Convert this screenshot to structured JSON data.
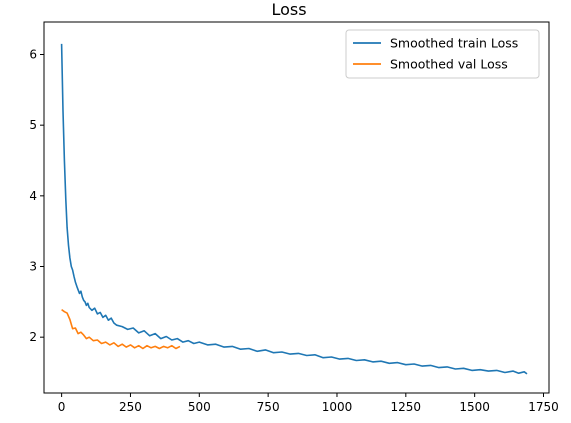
{
  "chart_data": {
    "type": "line",
    "title": "Loss",
    "xlabel": "",
    "ylabel": "",
    "xlim": [
      -64,
      1770
    ],
    "ylim": [
      1.21,
      6.46
    ],
    "xticks": [
      0,
      250,
      500,
      750,
      1000,
      1250,
      1500,
      1750
    ],
    "yticks": [
      2,
      3,
      4,
      5,
      6
    ],
    "grid": false,
    "legend_position": "top-right",
    "series": [
      {
        "name": "Smoothed train Loss",
        "color": "#1f77b4",
        "x": [
          0,
          5,
          10,
          15,
          20,
          25,
          30,
          35,
          40,
          45,
          50,
          55,
          60,
          65,
          70,
          75,
          80,
          85,
          90,
          95,
          100,
          110,
          120,
          130,
          140,
          150,
          160,
          170,
          180,
          190,
          200,
          220,
          240,
          260,
          280,
          300,
          320,
          340,
          360,
          380,
          400,
          420,
          440,
          460,
          480,
          500,
          530,
          560,
          590,
          620,
          650,
          680,
          710,
          740,
          770,
          800,
          830,
          860,
          890,
          920,
          950,
          980,
          1010,
          1040,
          1070,
          1100,
          1130,
          1160,
          1190,
          1220,
          1250,
          1280,
          1310,
          1340,
          1370,
          1400,
          1430,
          1460,
          1490,
          1520,
          1550,
          1580,
          1610,
          1640,
          1660,
          1680,
          1690
        ],
        "y": [
          6.15,
          5.2,
          4.5,
          3.95,
          3.55,
          3.3,
          3.12,
          3.0,
          2.95,
          2.86,
          2.78,
          2.72,
          2.67,
          2.62,
          2.65,
          2.57,
          2.52,
          2.5,
          2.45,
          2.48,
          2.42,
          2.38,
          2.41,
          2.33,
          2.35,
          2.28,
          2.31,
          2.24,
          2.27,
          2.2,
          2.17,
          2.15,
          2.11,
          2.13,
          2.06,
          2.09,
          2.02,
          2.05,
          1.98,
          2.01,
          1.96,
          1.98,
          1.93,
          1.95,
          1.91,
          1.93,
          1.89,
          1.9,
          1.86,
          1.87,
          1.83,
          1.84,
          1.8,
          1.82,
          1.78,
          1.79,
          1.76,
          1.77,
          1.74,
          1.75,
          1.71,
          1.72,
          1.69,
          1.7,
          1.67,
          1.68,
          1.65,
          1.66,
          1.63,
          1.64,
          1.61,
          1.62,
          1.59,
          1.6,
          1.57,
          1.58,
          1.55,
          1.56,
          1.53,
          1.54,
          1.52,
          1.53,
          1.5,
          1.52,
          1.49,
          1.51,
          1.48
        ]
      },
      {
        "name": "Smoothed val Loss",
        "color": "#ff7f0e",
        "x": [
          0,
          10,
          20,
          30,
          40,
          50,
          60,
          70,
          80,
          90,
          100,
          115,
          130,
          145,
          160,
          175,
          190,
          205,
          220,
          235,
          250,
          265,
          280,
          295,
          310,
          325,
          340,
          355,
          370,
          385,
          400,
          415,
          430
        ],
        "y": [
          2.39,
          2.36,
          2.34,
          2.25,
          2.12,
          2.13,
          2.05,
          2.07,
          2.03,
          1.98,
          2.0,
          1.95,
          1.96,
          1.91,
          1.93,
          1.89,
          1.92,
          1.87,
          1.9,
          1.86,
          1.89,
          1.85,
          1.88,
          1.84,
          1.88,
          1.85,
          1.87,
          1.84,
          1.87,
          1.85,
          1.88,
          1.84,
          1.87
        ]
      }
    ]
  }
}
